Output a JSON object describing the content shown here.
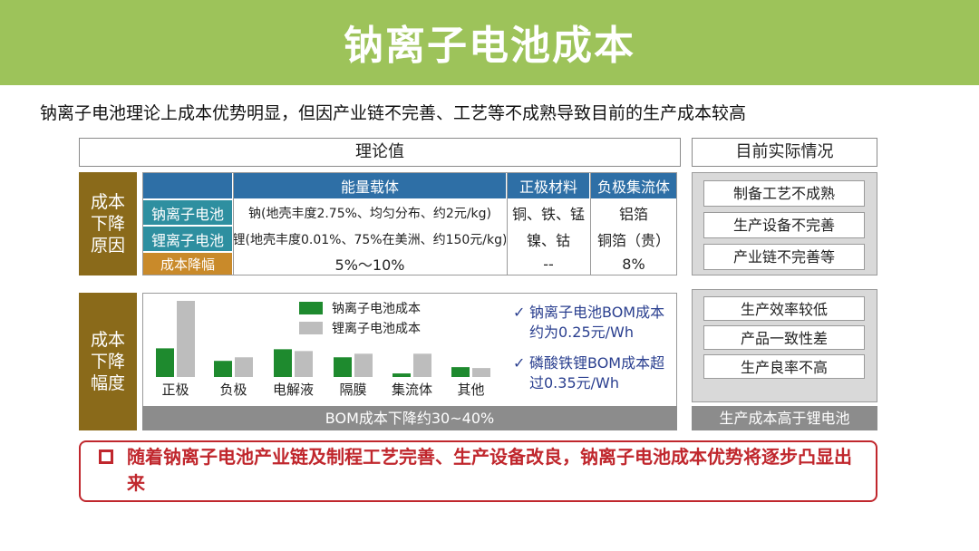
{
  "title": "钠离子电池成本",
  "subtitle": "钠离子电池理论上成本优势明显，但因产业链不完善、工艺等不成熟导致目前的生产成本较高",
  "theory_header": "理论值",
  "actual_header": "目前实际情况",
  "side_labels": {
    "reasons": "成本\n下降\n原因",
    "magnitude": "成本\n下降\n幅度"
  },
  "table": {
    "columns": [
      "能量载体",
      "正极材料",
      "负极集流体"
    ],
    "rows": [
      {
        "label": "钠离子电池",
        "cells": [
          "钠(地壳丰度2.75%、均匀分布、约2元/kg)",
          "铜、铁、锰",
          "铝箔"
        ]
      },
      {
        "label": "锂离子电池",
        "cells": [
          "锂(地壳丰度0.01%、75%在美洲、约150元/kg)",
          "镍、钴",
          "铜箔（贵）"
        ]
      },
      {
        "label": "成本降幅",
        "cells": [
          "5%～10%",
          "--",
          "8%"
        ]
      }
    ]
  },
  "chart_data": {
    "type": "bar",
    "categories": [
      "正极",
      "负极",
      "电解液",
      "隔膜",
      "集流体",
      "其他"
    ],
    "series": [
      {
        "name": "钠离子电池成本",
        "color": "#1e8a2e",
        "values": [
          32,
          18,
          31,
          22,
          4,
          11
        ]
      },
      {
        "name": "锂离子电池成本",
        "color": "#bdbdbd",
        "values": [
          85,
          22,
          29,
          26,
          26,
          10
        ]
      }
    ]
  },
  "notes": [
    "钠离子电池BOM成本约为0.25元/Wh",
    "磷酸铁锂BOM成本超过0.35元/Wh"
  ],
  "note_check": "✓",
  "bom_summary": "BOM成本下降约30~40%",
  "right_reasons": [
    "制备工艺不成熟",
    "生产设备不完善",
    "产业链不完善等"
  ],
  "right_effects": [
    "生产效率较低",
    "产品一致性差",
    "生产良率不高"
  ],
  "right_summary": "生产成本高于锂电池",
  "conclusion": "随着钠离子电池产业链及制程工艺完善、生产设备改良，钠离子电池成本优势将逐步凸显出来",
  "colors": {
    "banner": "#9dc35a",
    "header_blue": "#2e6fa6",
    "row_teal": "#2e8fa0",
    "row_orange": "#c98a2a",
    "side_brown": "#8a6a1a",
    "accent_red": "#c0272d",
    "note_blue": "#2a3f8f"
  }
}
